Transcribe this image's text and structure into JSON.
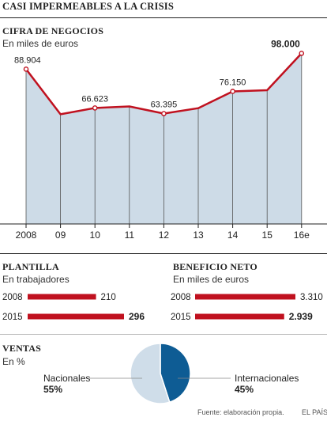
{
  "page_title": "CASI IMPERMEABLES A LA CRISIS",
  "footer": {
    "source": "Fuente: elaboración propia.",
    "brand": "EL PAÍS"
  },
  "colors": {
    "accent": "#c0111f",
    "area_fill": "#cddbe7",
    "dark_blue": "#0e5c94",
    "light_blue": "#cfdde9",
    "grid": "#555555"
  },
  "chart_data": [
    {
      "type": "area",
      "title": "CIFRA DE NEGOCIOS",
      "subtitle": "En miles de euros",
      "categories": [
        "2008",
        "09",
        "10",
        "11",
        "12",
        "13",
        "14",
        "15",
        "16e"
      ],
      "values": [
        88904,
        63000,
        66623,
        67500,
        63395,
        66500,
        76150,
        76800,
        98000
      ],
      "data_labels": [
        "88.904",
        "",
        "66.623",
        "",
        "63.395",
        "",
        "76.150",
        "",
        "98.000"
      ],
      "ylim": [
        0,
        100000
      ],
      "grid": true
    },
    {
      "type": "bar",
      "title": "PLANTILLA",
      "subtitle": "En trabajadores",
      "categories": [
        "2008",
        "2015"
      ],
      "values": [
        210,
        296
      ],
      "data_labels": [
        "210",
        "296"
      ]
    },
    {
      "type": "bar",
      "title": "BENEFICIO NETO",
      "subtitle": "En miles de euros",
      "categories": [
        "2008",
        "2015"
      ],
      "values": [
        3310,
        2939
      ],
      "data_labels": [
        "3.310",
        "2.939"
      ]
    },
    {
      "type": "pie",
      "title": "VENTAS",
      "subtitle": "En %",
      "categories": [
        "Nacionales",
        "Internacionales"
      ],
      "values": [
        55,
        45
      ],
      "data_labels": [
        "55%",
        "45%"
      ]
    }
  ]
}
